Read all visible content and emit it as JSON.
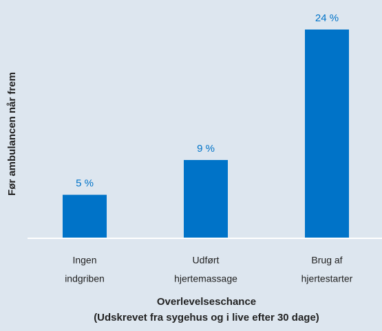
{
  "chart_data": {
    "type": "bar",
    "ylabel": "Før ambulancen når frem",
    "xlabel": [
      "Overlevelseschance",
      "(Udskrevet fra sygehus og i live efter 30 dage)"
    ],
    "categories": [
      [
        "Ingen",
        "indgriben"
      ],
      [
        "Udført",
        "hjertemassage"
      ],
      [
        "Brug af",
        "hjertestarter"
      ]
    ],
    "values": [
      5,
      9,
      24
    ],
    "value_labels": [
      "5 %",
      "9 %",
      "24 %"
    ],
    "color": "#0073c8",
    "background": "#dde6ef"
  }
}
